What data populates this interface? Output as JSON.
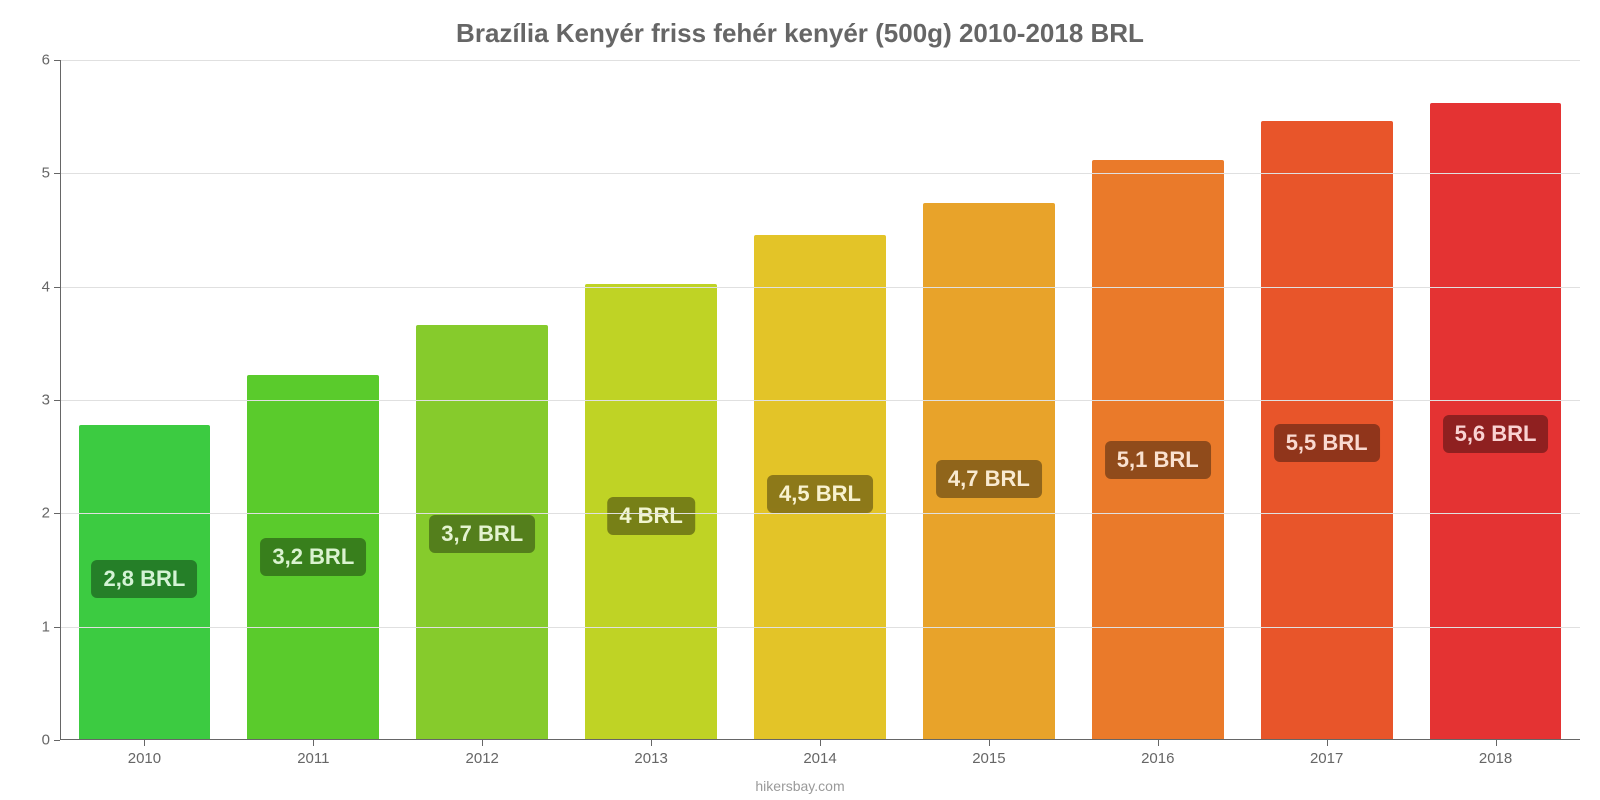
{
  "chart": {
    "type": "bar",
    "title": "Brazília Kenyér friss fehér kenyér (500g) 2010-2018 BRL",
    "title_fontsize": 26,
    "title_color": "#666666",
    "attribution": "hikersbay.com",
    "background_color": "#ffffff",
    "grid_color": "#e0e0e0",
    "axis_color": "#666666",
    "tick_label_color": "#666666",
    "tick_fontsize": 15,
    "ylim": [
      0,
      6
    ],
    "ytick_step": 1,
    "bar_width_ratio": 0.78,
    "value_label_fontsize": 22,
    "value_badge_alpha": 0.78,
    "bars": [
      {
        "category": "2010",
        "value": 2.78,
        "label": "2,8 BRL",
        "color": "#3ccb41",
        "badge_bg": "#1f6a22"
      },
      {
        "category": "2011",
        "value": 3.22,
        "label": "3,2 BRL",
        "color": "#5acb2c",
        "badge_bg": "#2f6a18"
      },
      {
        "category": "2012",
        "value": 3.66,
        "label": "3,7 BRL",
        "color": "#86cb2c",
        "badge_bg": "#476a18"
      },
      {
        "category": "2013",
        "value": 4.02,
        "label": "4 BRL",
        "color": "#bfd325",
        "badge_bg": "#636a14"
      },
      {
        "category": "2014",
        "value": 4.46,
        "label": "4,5 BRL",
        "color": "#e3c428",
        "badge_bg": "#766416"
      },
      {
        "category": "2015",
        "value": 4.74,
        "label": "4,7 BRL",
        "color": "#e8a32a",
        "badge_bg": "#785417"
      },
      {
        "category": "2016",
        "value": 5.12,
        "label": "5,1 BRL",
        "color": "#ea7a2a",
        "badge_bg": "#783f17"
      },
      {
        "category": "2017",
        "value": 5.46,
        "label": "5,5 BRL",
        "color": "#e8552a",
        "badge_bg": "#782d17"
      },
      {
        "category": "2018",
        "value": 5.62,
        "label": "5,6 BRL",
        "color": "#e43333",
        "badge_bg": "#781b1b"
      }
    ]
  }
}
